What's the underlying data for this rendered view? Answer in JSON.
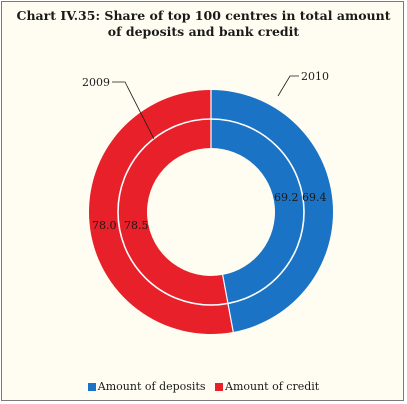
{
  "chart_data": {
    "type": "pie",
    "subtype": "double-donut",
    "title_line1": "Chart IV.35: Share of top 100 centres in total amount",
    "title_line2": "of deposits and bank credit",
    "rings": [
      {
        "name": "2009",
        "position": "inner",
        "values": [
          69.2,
          78.5
        ]
      },
      {
        "name": "2010",
        "position": "outer",
        "values": [
          69.4,
          78.0
        ]
      }
    ],
    "categories": [
      "Amount of deposits",
      "Amount of credit"
    ],
    "colors": {
      "deposits": "#1a73c4",
      "credit": "#e8202a"
    },
    "legend_position": "bottom"
  }
}
